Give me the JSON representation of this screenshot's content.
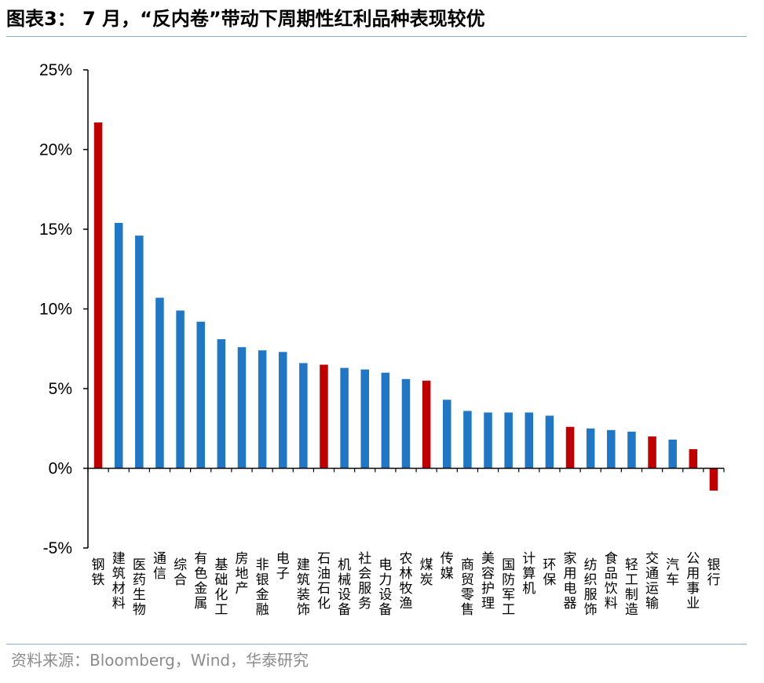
{
  "figure": {
    "title": "图表3：  7 月，“反内卷”带动下周期性红利品种表现较优",
    "source": "资料来源：Bloomberg，Wind，华泰研究"
  },
  "colors": {
    "blue": "#1f77c5",
    "red": "#c00000",
    "rule": "#8fa9c8",
    "axis": "#000000"
  },
  "chart_data": {
    "type": "bar",
    "title": "",
    "xlabel": "",
    "ylabel": "",
    "ylim": [
      -5,
      25
    ],
    "yticks": [
      -5,
      0,
      5,
      10,
      15,
      20,
      25
    ],
    "ytick_labels": [
      "-5%",
      "0%",
      "5%",
      "10%",
      "15%",
      "20%",
      "25%"
    ],
    "grid": false,
    "legend": "none",
    "categories": [
      "钢铁",
      "建筑材料",
      "医药生物",
      "通信",
      "综合",
      "有色金属",
      "基础化工",
      "房地产",
      "非银金融",
      "电子",
      "建筑装饰",
      "石油石化",
      "机械设备",
      "社会服务",
      "电力设备",
      "农林牧渔",
      "煤炭",
      "传媒",
      "商贸零售",
      "美容护理",
      "国防军工",
      "计算机",
      "环保",
      "家用电器",
      "纺织服饰",
      "食品饮料",
      "轻工制造",
      "交通运输",
      "汽车",
      "公用事业",
      "银行"
    ],
    "values": [
      21.7,
      15.4,
      14.6,
      10.7,
      9.9,
      9.2,
      8.1,
      7.6,
      7.4,
      7.3,
      6.6,
      6.5,
      6.3,
      6.2,
      6.0,
      5.6,
      5.5,
      4.3,
      3.6,
      3.5,
      3.5,
      3.5,
      3.3,
      2.6,
      2.5,
      2.4,
      2.3,
      2.0,
      1.8,
      1.2,
      -1.4
    ],
    "highlight": [
      "red",
      "blue",
      "blue",
      "blue",
      "blue",
      "blue",
      "blue",
      "blue",
      "blue",
      "blue",
      "blue",
      "red",
      "blue",
      "blue",
      "blue",
      "blue",
      "red",
      "blue",
      "blue",
      "blue",
      "blue",
      "blue",
      "blue",
      "red",
      "blue",
      "blue",
      "blue",
      "red",
      "blue",
      "red",
      "red"
    ]
  }
}
